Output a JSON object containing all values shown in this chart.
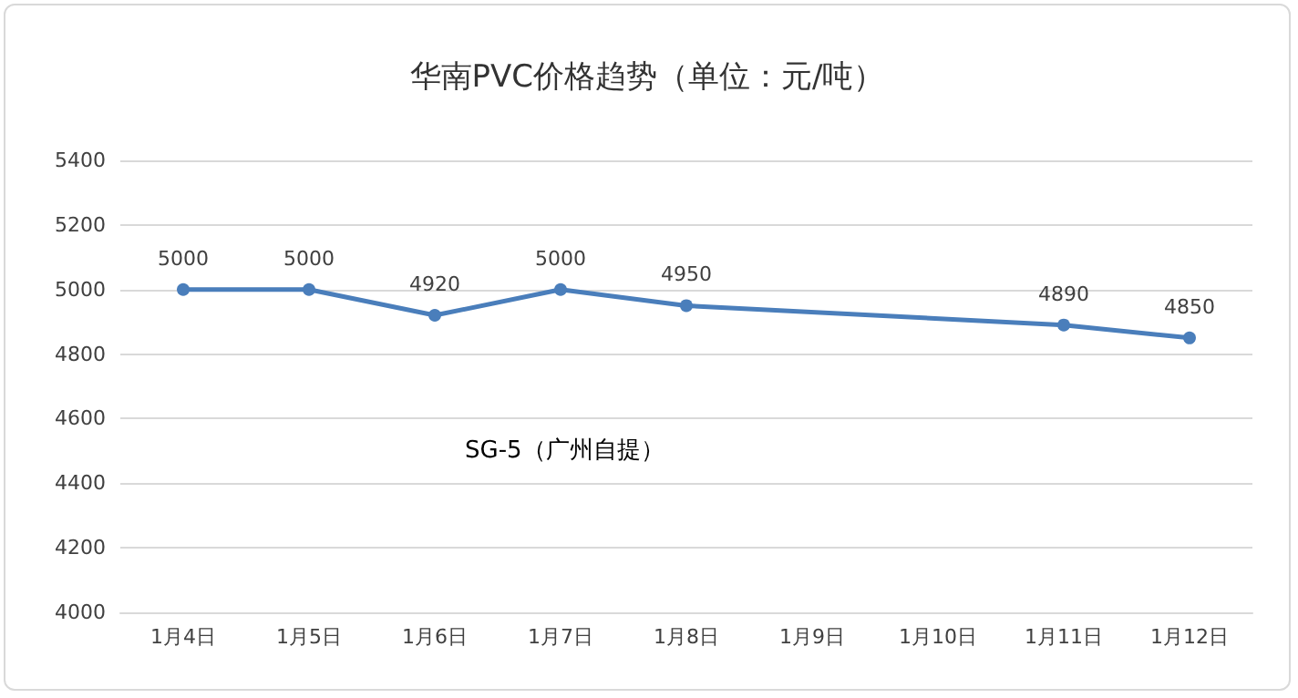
{
  "chart_data": {
    "type": "line",
    "title": "华南PVC价格趋势（单位：元/吨）",
    "categories": [
      "1月4日",
      "1月5日",
      "1月6日",
      "1月7日",
      "1月8日",
      "1月9日",
      "1月10日",
      "1月11日",
      "1月12日"
    ],
    "series": [
      {
        "name": "SG-5（广州自提）",
        "color": "#4a7ebb",
        "values": [
          5000,
          5000,
          4920,
          5000,
          4950,
          null,
          null,
          4890,
          4850
        ]
      }
    ],
    "ylim": [
      4000,
      5400
    ],
    "yticks": [
      4000,
      4200,
      4400,
      4600,
      4800,
      5000,
      5200,
      5400
    ],
    "grid": "y",
    "marker": "circle",
    "data_labels": true
  }
}
